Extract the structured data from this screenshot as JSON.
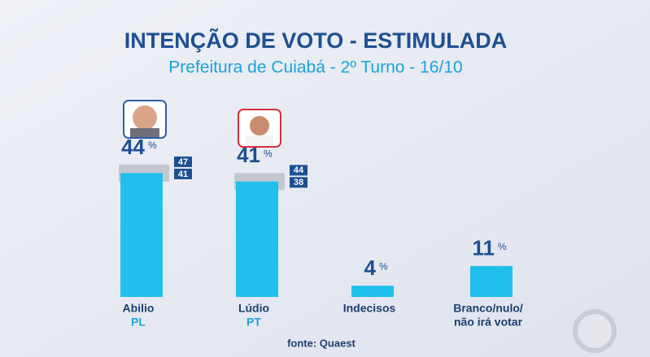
{
  "chart_data": {
    "type": "bar",
    "title": "INTENÇÃO DE VOTO - ESTIMULADA",
    "subtitle": "Prefeitura de Cuiabá - 2º Turno - 16/10",
    "categories": [
      "Abilio",
      "Lúdio",
      "Indecisos",
      "Branco/nulo/"
    ],
    "sublabels": [
      "PL",
      "PT",
      null,
      "não irá votar"
    ],
    "values": [
      44,
      41,
      4,
      11
    ],
    "unit": "%",
    "upper": [
      47,
      44,
      null,
      null
    ],
    "lower": [
      41,
      38,
      null,
      null
    ],
    "color": "#1fc0ee",
    "source": "fonte: Quaest"
  }
}
